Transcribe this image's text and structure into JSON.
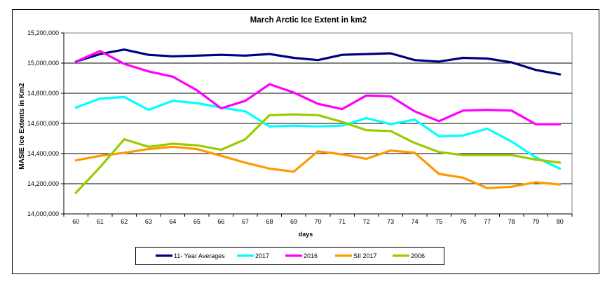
{
  "figure": {
    "background": "#FFFFFF",
    "outer_border_color": "#000000",
    "plot_border_color": "#808080",
    "gridline_color": "#000000"
  },
  "chart_data": {
    "type": "line",
    "title": "March Arctic Ice Extent in km2",
    "xlabel": "days",
    "ylabel": "MASIE Ice Extents in Km2",
    "grid": true,
    "legend_position": "bottom",
    "ylim": [
      14000000,
      15200000
    ],
    "ytick_interval": 200000,
    "ytick_labels": [
      "14,000,000",
      "14,200,000",
      "14,400,000",
      "14,600,000",
      "14,800,000",
      "15,000,000",
      "15,200,000"
    ],
    "x": [
      60,
      61,
      62,
      63,
      64,
      65,
      66,
      67,
      68,
      69,
      70,
      71,
      72,
      73,
      74,
      75,
      76,
      77,
      78,
      79,
      80
    ],
    "series": [
      {
        "name": "11- Year Averages",
        "color": "#000080",
        "values": [
          15010000,
          15060000,
          15090000,
          15055000,
          15045000,
          15050000,
          15055000,
          15050000,
          15060000,
          15035000,
          15020000,
          15055000,
          15060000,
          15065000,
          15020000,
          15010000,
          15035000,
          15030000,
          15005000,
          14955000,
          14925000
        ]
      },
      {
        "name": "2017",
        "color": "#00FFFF",
        "values": [
          14705000,
          14765000,
          14775000,
          14690000,
          14750000,
          14735000,
          14705000,
          14680000,
          14580000,
          14585000,
          14580000,
          14585000,
          14635000,
          14595000,
          14625000,
          14515000,
          14520000,
          14565000,
          14480000,
          14375000,
          14300000
        ]
      },
      {
        "name": "2016",
        "color": "#FF00FF",
        "values": [
          15010000,
          15080000,
          14995000,
          14945000,
          14910000,
          14820000,
          14700000,
          14750000,
          14860000,
          14805000,
          14730000,
          14695000,
          14785000,
          14780000,
          14680000,
          14615000,
          14685000,
          14690000,
          14685000,
          14595000,
          14595000
        ]
      },
      {
        "name": "SII 2017",
        "color": "#FF9900",
        "values": [
          14355000,
          14385000,
          14405000,
          14430000,
          14445000,
          14430000,
          14385000,
          14340000,
          14300000,
          14280000,
          14415000,
          14395000,
          14365000,
          14420000,
          14405000,
          14265000,
          14240000,
          14170000,
          14180000,
          14210000,
          14195000
        ]
      },
      {
        "name": "2006",
        "color": "#99CC00",
        "values": [
          14140000,
          14310000,
          14495000,
          14445000,
          14465000,
          14455000,
          14425000,
          14495000,
          14655000,
          14660000,
          14655000,
          14610000,
          14555000,
          14550000,
          14470000,
          14410000,
          14390000,
          14390000,
          14390000,
          14360000,
          14340000
        ]
      }
    ]
  }
}
